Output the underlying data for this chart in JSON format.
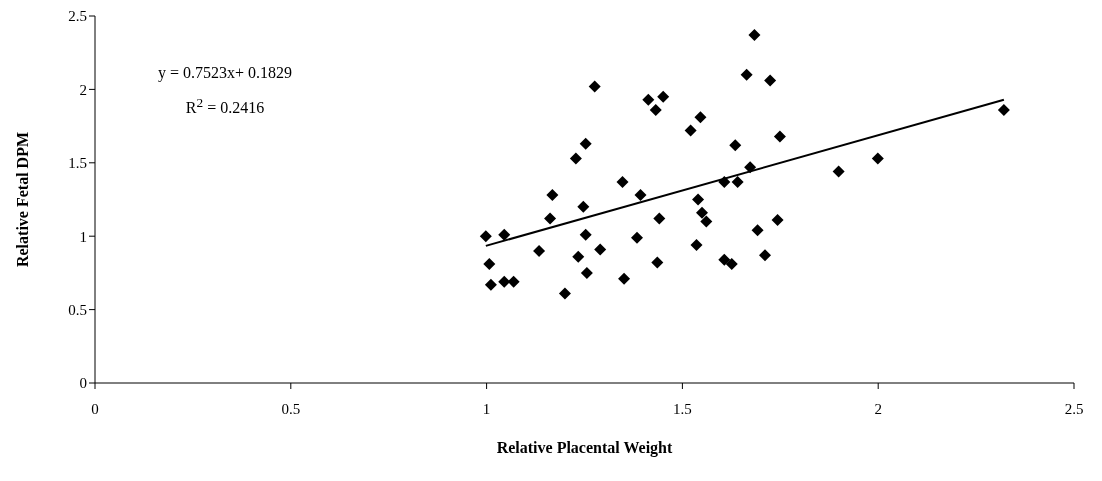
{
  "chart_data": {
    "type": "scatter",
    "xlabel": "Relative Placental Weight",
    "ylabel": "Relative Fetal DPM",
    "annotations": [
      "y = 0.7523x+ 0.1829",
      "R$^{2}$ = 0.2416"
    ],
    "xlim": [
      0,
      2.5
    ],
    "xticks": [
      0,
      0.5,
      1,
      1.5,
      2,
      2.5
    ],
    "ylim": [
      0,
      2.5
    ],
    "yticks": [
      0,
      0.5,
      1,
      1.5,
      2,
      2.5
    ],
    "grid": false,
    "legend": false,
    "marker": "diamond",
    "series": [
      {
        "color": "#000000",
        "x": [
          0.998,
          1.045,
          1.007,
          1.011,
          1.045,
          1.069,
          1.134,
          1.162,
          1.168,
          1.2,
          1.228,
          1.253,
          1.247,
          1.253,
          1.234,
          1.256,
          1.276,
          1.29,
          1.347,
          1.351,
          1.384,
          1.393,
          1.413,
          1.432,
          1.451,
          1.441,
          1.436,
          1.521,
          1.546,
          1.54,
          1.55,
          1.561,
          1.536,
          1.607,
          1.626,
          1.607,
          1.641,
          1.635,
          1.673,
          1.664,
          1.684,
          1.724,
          1.692,
          1.711,
          1.749,
          1.743,
          1.899,
          1.999,
          2.321
        ],
        "values": [
          1.0,
          1.01,
          0.81,
          0.67,
          0.69,
          0.69,
          0.9,
          1.12,
          1.28,
          0.61,
          1.53,
          1.63,
          1.2,
          1.01,
          0.86,
          0.75,
          2.02,
          0.91,
          1.37,
          0.71,
          0.99,
          1.28,
          1.93,
          1.86,
          1.95,
          1.12,
          0.82,
          1.72,
          1.81,
          1.25,
          1.16,
          1.1,
          0.94,
          0.84,
          0.81,
          1.37,
          1.37,
          1.62,
          1.47,
          2.1,
          2.37,
          2.06,
          1.04,
          0.87,
          1.68,
          1.11,
          1.44,
          1.53,
          1.86
        ]
      },
      {
        "type": "line",
        "marker": "none",
        "color": "#000000",
        "x": [
          0.998,
          2.321
        ],
        "values": [
          0.934,
          1.929
        ]
      }
    ]
  }
}
